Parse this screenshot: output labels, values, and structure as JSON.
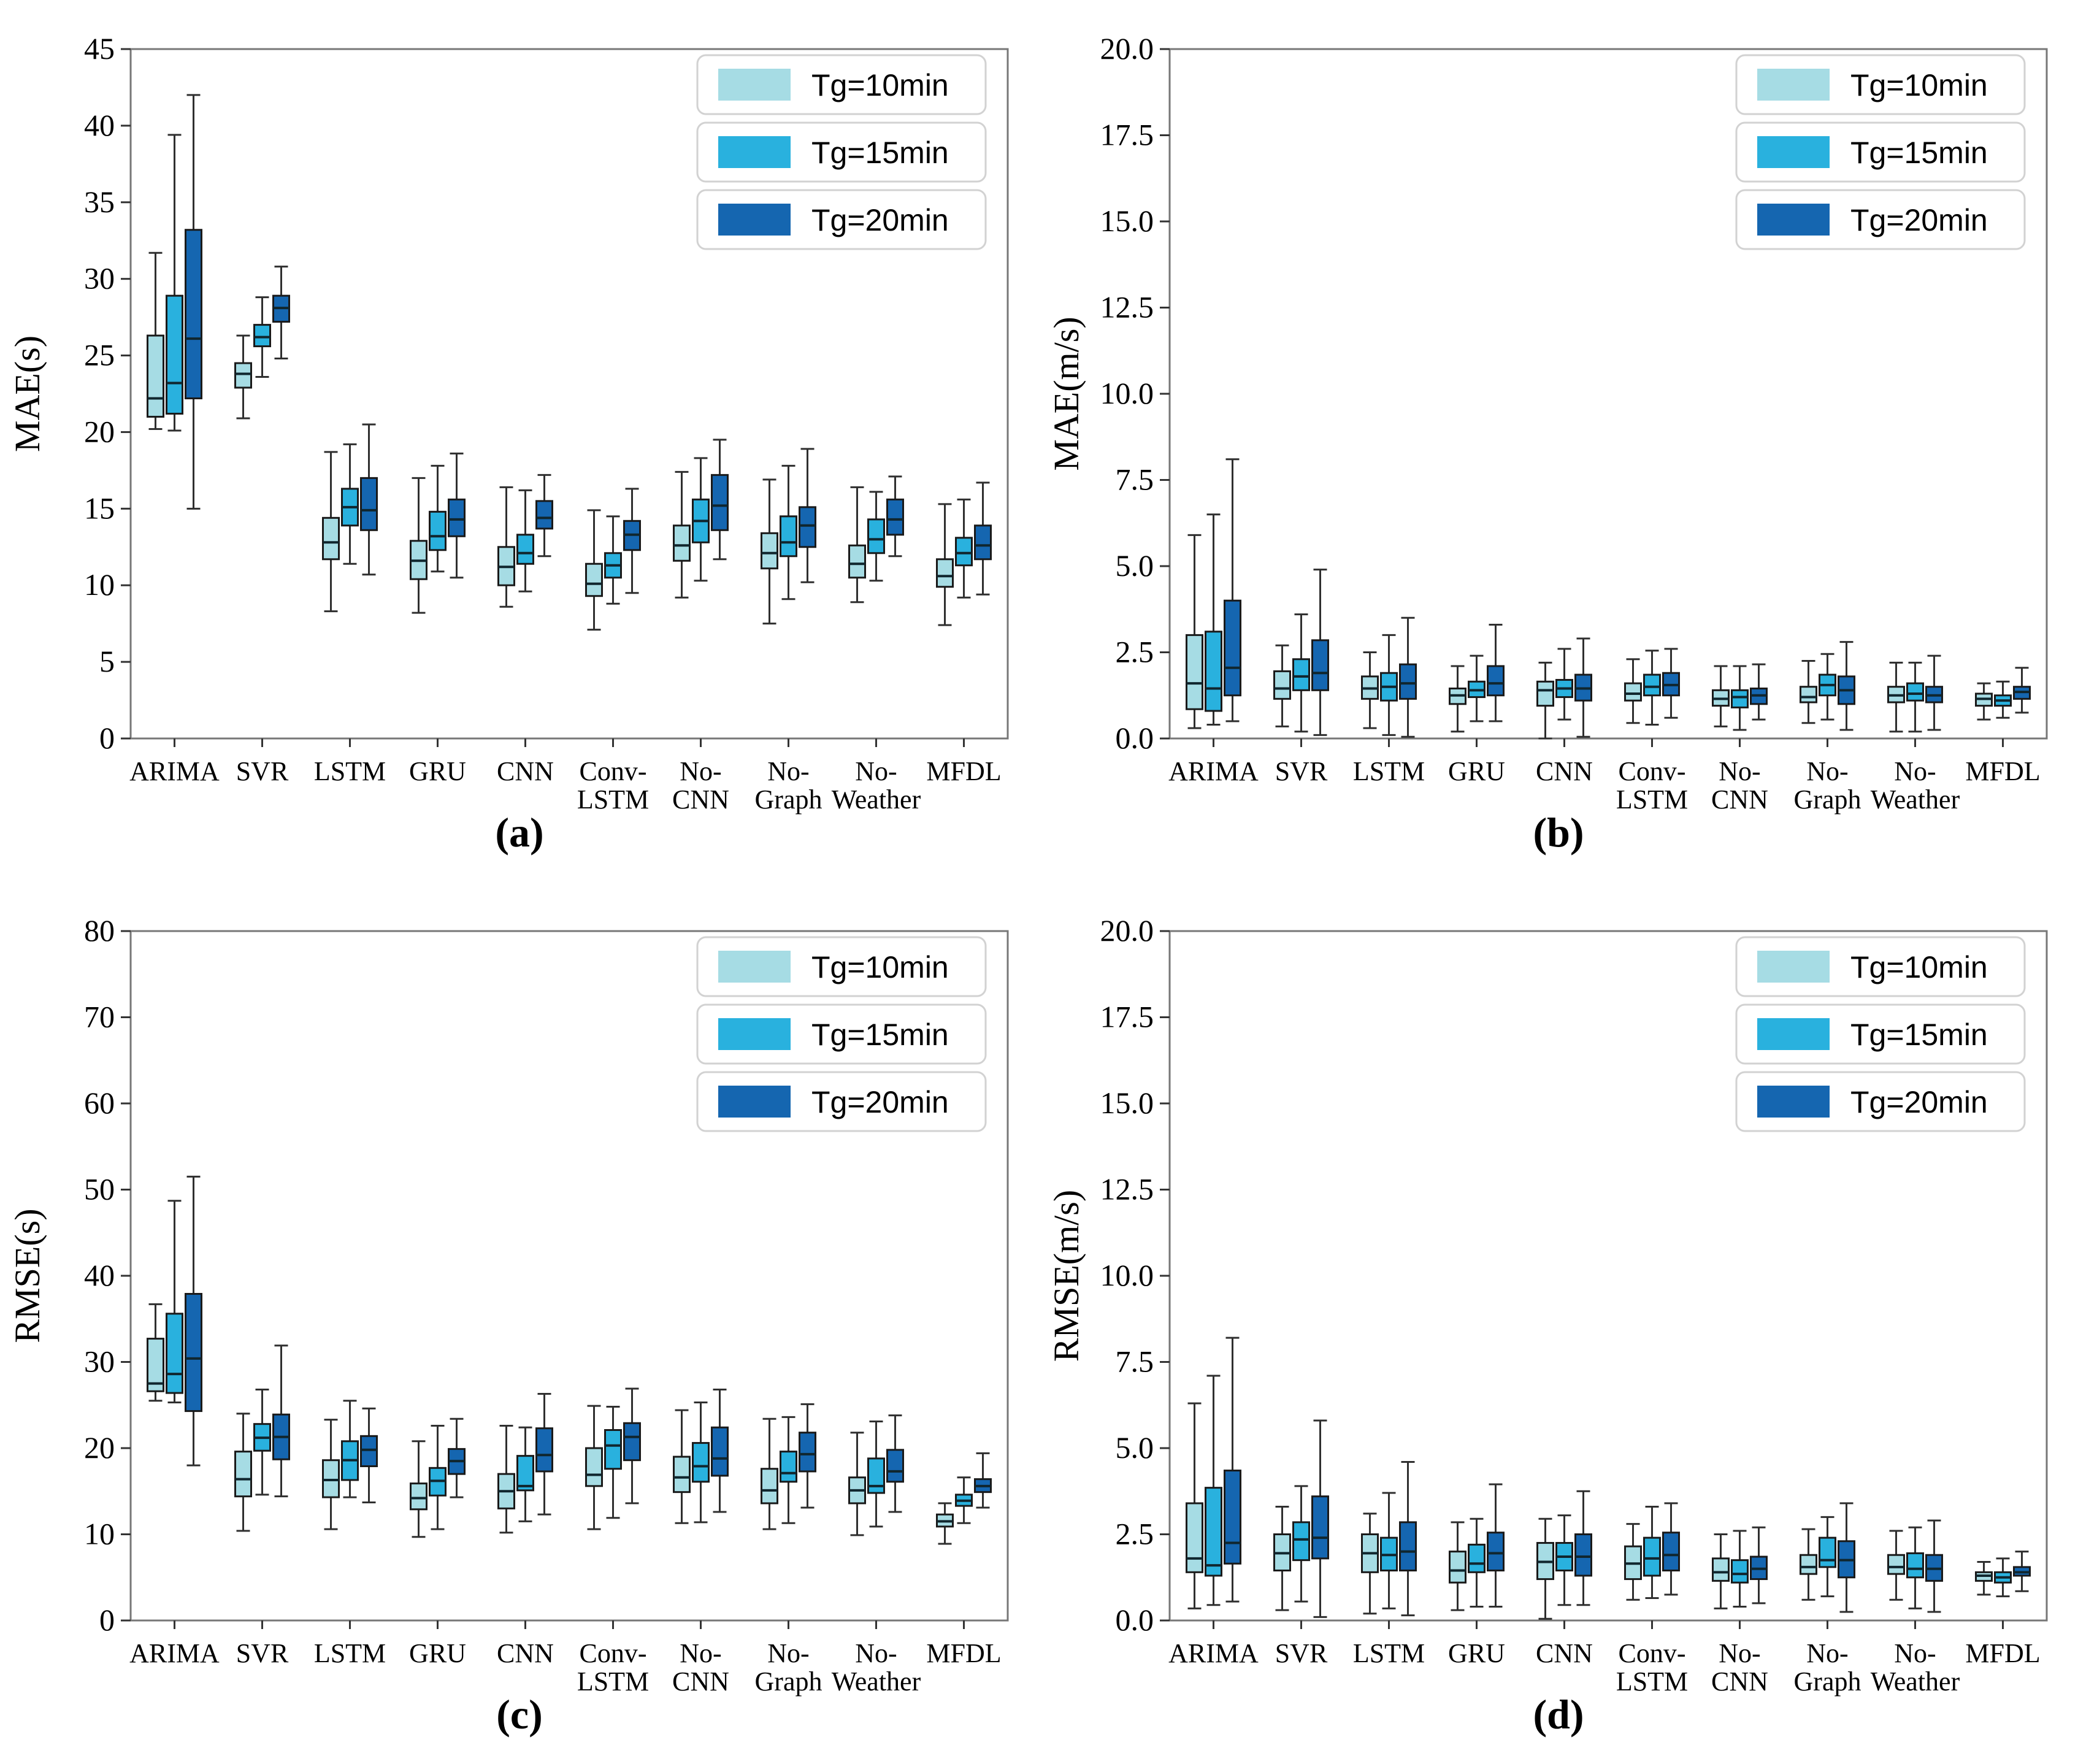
{
  "figure": {
    "background": "#ffffff",
    "text_color": "#000000",
    "frame_color": "#777777",
    "tick_color": "#333333",
    "box_border_color": "#1a1a1a",
    "median_color": "#10262e",
    "whisker_color": "#2f2f2f",
    "legend_border_color": "#d2d2d2",
    "legend_bg": "#ffffff",
    "series_colors": [
      "#a6dce4",
      "#29b1de",
      "#1566b0"
    ],
    "legend_labels": [
      "Tg=10min",
      "Tg=15min",
      "Tg=20min"
    ]
  },
  "chart_data": [
    {
      "id": "a",
      "type": "box",
      "caption": "(a)",
      "ylabel": "MAE(s)",
      "ylim": [
        0,
        45
      ],
      "ystep": 5,
      "ydecimals": 0,
      "grid": false,
      "legend_position": "top-right",
      "categories": [
        [
          "ARIMA"
        ],
        [
          "SVR"
        ],
        [
          "LSTM"
        ],
        [
          "GRU"
        ],
        [
          "CNN"
        ],
        [
          "Conv-",
          "LSTM"
        ],
        [
          "No-",
          "CNN"
        ],
        [
          "No-",
          "Graph"
        ],
        [
          "No-",
          "Weather"
        ],
        [
          "MFDL"
        ]
      ],
      "series": [
        {
          "name": "Tg=10min",
          "values": [
            [
              20.2,
              21.0,
              22.2,
              26.3,
              31.7
            ],
            [
              20.9,
              22.9,
              23.8,
              24.5,
              26.3
            ],
            [
              8.3,
              11.7,
              12.8,
              14.4,
              18.7
            ],
            [
              8.2,
              10.4,
              11.6,
              12.9,
              17.0
            ],
            [
              8.6,
              10.0,
              11.2,
              12.5,
              16.4
            ],
            [
              7.1,
              9.3,
              10.1,
              11.4,
              14.9
            ],
            [
              9.2,
              11.6,
              12.6,
              13.9,
              17.4
            ],
            [
              7.5,
              11.1,
              12.1,
              13.4,
              16.9
            ],
            [
              8.9,
              10.5,
              11.4,
              12.6,
              16.4
            ],
            [
              7.4,
              9.9,
              10.6,
              11.7,
              15.3
            ]
          ]
        },
        {
          "name": "Tg=15min",
          "values": [
            [
              20.1,
              21.2,
              23.2,
              28.9,
              39.4
            ],
            [
              23.6,
              25.6,
              26.2,
              27.0,
              28.8
            ],
            [
              11.4,
              13.9,
              15.1,
              16.3,
              19.2
            ],
            [
              10.9,
              12.3,
              13.2,
              14.8,
              17.8
            ],
            [
              9.6,
              11.4,
              12.1,
              13.3,
              16.2
            ],
            [
              8.8,
              10.5,
              11.3,
              12.1,
              14.5
            ],
            [
              10.3,
              12.8,
              14.2,
              15.6,
              18.3
            ],
            [
              9.1,
              11.9,
              12.8,
              14.5,
              17.8
            ],
            [
              10.3,
              12.1,
              13.0,
              14.3,
              16.1
            ],
            [
              9.2,
              11.3,
              12.1,
              13.1,
              15.6
            ]
          ]
        },
        {
          "name": "Tg=20min",
          "values": [
            [
              15.0,
              22.2,
              26.1,
              33.2,
              42.0
            ],
            [
              24.8,
              27.2,
              28.1,
              28.9,
              30.8
            ],
            [
              10.7,
              13.6,
              14.9,
              17.0,
              20.5
            ],
            [
              10.5,
              13.2,
              14.3,
              15.6,
              18.6
            ],
            [
              11.9,
              13.7,
              14.4,
              15.5,
              17.2
            ],
            [
              9.5,
              12.3,
              13.3,
              14.2,
              16.3
            ],
            [
              11.7,
              13.6,
              15.2,
              17.2,
              19.5
            ],
            [
              10.2,
              12.5,
              13.9,
              15.1,
              18.9
            ],
            [
              11.9,
              13.3,
              14.3,
              15.6,
              17.1
            ],
            [
              9.4,
              11.7,
              12.6,
              13.9,
              16.7
            ]
          ]
        }
      ]
    },
    {
      "id": "b",
      "type": "box",
      "caption": "(b)",
      "ylabel": "MAE(m/s)",
      "ylim": [
        0,
        20
      ],
      "ystep": 2.5,
      "ydecimals": 1,
      "grid": false,
      "legend_position": "top-right",
      "categories": [
        [
          "ARIMA"
        ],
        [
          "SVR"
        ],
        [
          "LSTM"
        ],
        [
          "GRU"
        ],
        [
          "CNN"
        ],
        [
          "Conv-",
          "LSTM"
        ],
        [
          "No-",
          "CNN"
        ],
        [
          "No-",
          "Graph"
        ],
        [
          "No-",
          "Weather"
        ],
        [
          "MFDL"
        ]
      ],
      "series": [
        {
          "name": "Tg=10min",
          "values": [
            [
              0.3,
              0.85,
              1.6,
              3.0,
              5.9
            ],
            [
              0.35,
              1.15,
              1.45,
              1.95,
              2.7
            ],
            [
              0.3,
              1.15,
              1.45,
              1.8,
              2.5
            ],
            [
              0.2,
              1.0,
              1.25,
              1.45,
              2.1
            ],
            [
              0.0,
              0.95,
              1.4,
              1.65,
              2.2
            ],
            [
              0.45,
              1.1,
              1.3,
              1.6,
              2.3
            ],
            [
              0.35,
              0.95,
              1.15,
              1.4,
              2.1
            ],
            [
              0.45,
              1.05,
              1.2,
              1.5,
              2.25
            ],
            [
              0.2,
              1.05,
              1.25,
              1.5,
              2.2
            ],
            [
              0.55,
              0.95,
              1.15,
              1.3,
              1.6
            ]
          ]
        },
        {
          "name": "Tg=15min",
          "values": [
            [
              0.4,
              0.8,
              1.45,
              3.1,
              6.5
            ],
            [
              0.2,
              1.4,
              1.8,
              2.3,
              3.6
            ],
            [
              0.1,
              1.1,
              1.5,
              1.9,
              3.0
            ],
            [
              0.5,
              1.2,
              1.4,
              1.65,
              2.4
            ],
            [
              0.55,
              1.2,
              1.45,
              1.7,
              2.6
            ],
            [
              0.4,
              1.25,
              1.5,
              1.85,
              2.55
            ],
            [
              0.25,
              0.9,
              1.2,
              1.4,
              2.1
            ],
            [
              0.55,
              1.25,
              1.55,
              1.85,
              2.45
            ],
            [
              0.2,
              1.1,
              1.3,
              1.6,
              2.2
            ],
            [
              0.6,
              0.95,
              1.1,
              1.25,
              1.65
            ]
          ]
        },
        {
          "name": "Tg=20min",
          "values": [
            [
              0.5,
              1.25,
              2.05,
              4.0,
              8.1
            ],
            [
              0.1,
              1.4,
              1.9,
              2.85,
              4.9
            ],
            [
              0.05,
              1.15,
              1.6,
              2.15,
              3.5
            ],
            [
              0.5,
              1.25,
              1.6,
              2.1,
              3.3
            ],
            [
              0.05,
              1.1,
              1.45,
              1.85,
              2.9
            ],
            [
              0.6,
              1.25,
              1.55,
              1.9,
              2.6
            ],
            [
              0.55,
              1.0,
              1.25,
              1.45,
              2.15
            ],
            [
              0.25,
              1.0,
              1.4,
              1.8,
              2.8
            ],
            [
              0.25,
              1.05,
              1.25,
              1.5,
              2.4
            ],
            [
              0.75,
              1.15,
              1.35,
              1.5,
              2.05
            ]
          ]
        }
      ]
    },
    {
      "id": "c",
      "type": "box",
      "caption": "(c)",
      "ylabel": "RMSE(s)",
      "ylim": [
        0,
        80
      ],
      "ystep": 10,
      "ydecimals": 0,
      "grid": false,
      "legend_position": "top-right",
      "categories": [
        [
          "ARIMA"
        ],
        [
          "SVR"
        ],
        [
          "LSTM"
        ],
        [
          "GRU"
        ],
        [
          "CNN"
        ],
        [
          "Conv-",
          "LSTM"
        ],
        [
          "No-",
          "CNN"
        ],
        [
          "No-",
          "Graph"
        ],
        [
          "No-",
          "Weather"
        ],
        [
          "MFDL"
        ]
      ],
      "series": [
        {
          "name": "Tg=10min",
          "values": [
            [
              25.5,
              26.6,
              27.5,
              32.7,
              36.7
            ],
            [
              10.4,
              14.4,
              16.4,
              19.6,
              24.0
            ],
            [
              10.6,
              14.3,
              16.3,
              18.6,
              23.3
            ],
            [
              9.7,
              12.9,
              14.2,
              15.9,
              20.8
            ],
            [
              10.2,
              13.0,
              15.0,
              17.0,
              22.6
            ],
            [
              10.6,
              15.6,
              16.9,
              20.0,
              24.9
            ],
            [
              11.3,
              14.9,
              16.6,
              19.0,
              24.4
            ],
            [
              10.6,
              13.6,
              15.1,
              17.6,
              23.4
            ],
            [
              9.9,
              13.6,
              15.1,
              16.6,
              21.8
            ],
            [
              8.9,
              10.9,
              11.5,
              12.3,
              13.6
            ]
          ]
        },
        {
          "name": "Tg=15min",
          "values": [
            [
              25.3,
              26.4,
              28.6,
              35.6,
              48.7
            ],
            [
              14.6,
              19.7,
              21.2,
              22.8,
              26.8
            ],
            [
              14.3,
              16.3,
              18.6,
              20.8,
              25.5
            ],
            [
              10.6,
              14.5,
              16.2,
              17.7,
              22.6
            ],
            [
              11.5,
              15.1,
              15.6,
              19.1,
              22.4
            ],
            [
              11.9,
              17.6,
              20.3,
              22.1,
              24.8
            ],
            [
              11.4,
              16.1,
              17.9,
              20.6,
              25.3
            ],
            [
              11.3,
              16.1,
              17.1,
              19.6,
              23.6
            ],
            [
              10.9,
              14.8,
              15.6,
              18.8,
              23.1
            ],
            [
              11.3,
              13.3,
              13.9,
              14.6,
              16.6
            ]
          ]
        },
        {
          "name": "Tg=20min",
          "values": [
            [
              18.0,
              24.3,
              30.4,
              37.9,
              51.5
            ],
            [
              14.4,
              18.7,
              21.3,
              23.9,
              31.9
            ],
            [
              13.7,
              17.9,
              19.8,
              21.4,
              24.6
            ],
            [
              14.3,
              17.0,
              18.5,
              19.9,
              23.4
            ],
            [
              12.3,
              17.3,
              19.2,
              22.3,
              26.3
            ],
            [
              13.6,
              18.6,
              21.3,
              22.9,
              26.9
            ],
            [
              12.6,
              16.8,
              18.8,
              22.4,
              26.8
            ],
            [
              13.1,
              17.3,
              19.3,
              21.8,
              25.1
            ],
            [
              12.6,
              16.1,
              17.3,
              19.8,
              23.8
            ],
            [
              13.1,
              14.9,
              15.6,
              16.4,
              19.4
            ]
          ]
        }
      ]
    },
    {
      "id": "d",
      "type": "box",
      "caption": "(d)",
      "ylabel": "RMSE(m/s)",
      "ylim": [
        0,
        20
      ],
      "ystep": 2.5,
      "ydecimals": 1,
      "grid": false,
      "legend_position": "top-right",
      "categories": [
        [
          "ARIMA"
        ],
        [
          "SVR"
        ],
        [
          "LSTM"
        ],
        [
          "GRU"
        ],
        [
          "CNN"
        ],
        [
          "Conv-",
          "LSTM"
        ],
        [
          "No-",
          "CNN"
        ],
        [
          "No-",
          "Graph"
        ],
        [
          "No-",
          "Weather"
        ],
        [
          "MFDL"
        ]
      ],
      "series": [
        {
          "name": "Tg=10min",
          "values": [
            [
              0.35,
              1.4,
              1.8,
              3.4,
              6.3
            ],
            [
              0.3,
              1.45,
              1.95,
              2.5,
              3.3
            ],
            [
              0.2,
              1.4,
              1.95,
              2.5,
              3.1
            ],
            [
              0.3,
              1.1,
              1.45,
              2.0,
              2.85
            ],
            [
              0.05,
              1.2,
              1.7,
              2.25,
              2.95
            ],
            [
              0.6,
              1.2,
              1.65,
              2.15,
              2.8
            ],
            [
              0.35,
              1.15,
              1.4,
              1.8,
              2.5
            ],
            [
              0.6,
              1.35,
              1.55,
              1.9,
              2.65
            ],
            [
              0.6,
              1.35,
              1.55,
              1.9,
              2.6
            ],
            [
              0.75,
              1.15,
              1.3,
              1.4,
              1.7
            ]
          ]
        },
        {
          "name": "Tg=15min",
          "values": [
            [
              0.45,
              1.3,
              1.6,
              3.85,
              7.1
            ],
            [
              0.55,
              1.75,
              2.35,
              2.85,
              3.9
            ],
            [
              0.35,
              1.45,
              1.9,
              2.4,
              3.7
            ],
            [
              0.4,
              1.4,
              1.65,
              2.2,
              2.95
            ],
            [
              0.45,
              1.45,
              1.85,
              2.25,
              3.05
            ],
            [
              0.65,
              1.3,
              1.8,
              2.4,
              3.3
            ],
            [
              0.4,
              1.1,
              1.35,
              1.75,
              2.6
            ],
            [
              0.7,
              1.55,
              1.75,
              2.4,
              3.0
            ],
            [
              0.35,
              1.25,
              1.5,
              1.95,
              2.7
            ],
            [
              0.7,
              1.1,
              1.25,
              1.4,
              1.8
            ]
          ]
        },
        {
          "name": "Tg=20min",
          "values": [
            [
              0.55,
              1.65,
              2.25,
              4.35,
              8.2
            ],
            [
              0.1,
              1.8,
              2.4,
              3.6,
              5.8
            ],
            [
              0.15,
              1.45,
              2.0,
              2.85,
              4.6
            ],
            [
              0.4,
              1.45,
              1.95,
              2.55,
              3.95
            ],
            [
              0.45,
              1.3,
              1.85,
              2.5,
              3.75
            ],
            [
              0.75,
              1.45,
              1.9,
              2.55,
              3.4
            ],
            [
              0.5,
              1.2,
              1.5,
              1.85,
              2.7
            ],
            [
              0.25,
              1.25,
              1.75,
              2.3,
              3.4
            ],
            [
              0.25,
              1.15,
              1.5,
              1.9,
              2.9
            ],
            [
              0.85,
              1.3,
              1.4,
              1.55,
              2.0
            ]
          ]
        }
      ]
    }
  ]
}
